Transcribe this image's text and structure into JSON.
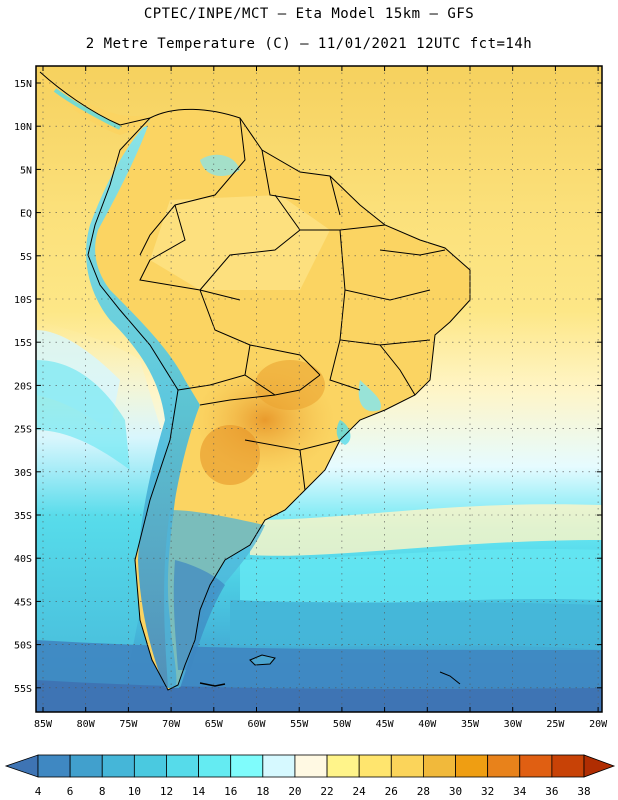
{
  "title_line1": "CPTEC/INPE/MCT –  Eta Model 15km – GFS",
  "title_line2": "2 Metre Temperature (C) – 11/01/2021 12UTC fct=14h",
  "lat_labels": [
    "15N",
    "10N",
    "5N",
    "EQ",
    "5S",
    "10S",
    "15S",
    "20S",
    "25S",
    "30S",
    "35S",
    "40S",
    "45S",
    "50S",
    "55S"
  ],
  "lon_labels": [
    "85W",
    "80W",
    "75W",
    "70W",
    "65W",
    "60W",
    "55W",
    "50W",
    "45W",
    "40W",
    "35W",
    "30W",
    "25W",
    "20W"
  ],
  "colorbar": {
    "values": [
      "4",
      "6",
      "8",
      "10",
      "12",
      "14",
      "16",
      "18",
      "20",
      "22",
      "24",
      "26",
      "28",
      "30",
      "32",
      "34",
      "36",
      "38"
    ],
    "colors": [
      "#3e74b4",
      "#3f88c2",
      "#41a0cd",
      "#45b6d8",
      "#4ac9e0",
      "#56dbea",
      "#64ebf2",
      "#7ffcfc",
      "#d6f9ff",
      "#fff9e3",
      "#fff48a",
      "#ffe56e",
      "#fbd45a",
      "#f1b93b",
      "#ef9e12",
      "#e8821b",
      "#e05f12",
      "#c84206",
      "#b02d02"
    ]
  },
  "map_colors": {
    "ocean_far_north": "#f6d15e",
    "ocean_tropic": "#fde787",
    "ocean_mid": "#fff5c6",
    "ocean_cool": "#d6f6ff",
    "ocean_cold": "#64e6f2",
    "ocean_colder": "#4ccde3",
    "ocean_south": "#3f94c8",
    "land": "#fbd462",
    "land_hot": "#ecab38",
    "andes": "#45b2d6",
    "patagonia": "#4aa4cf"
  }
}
